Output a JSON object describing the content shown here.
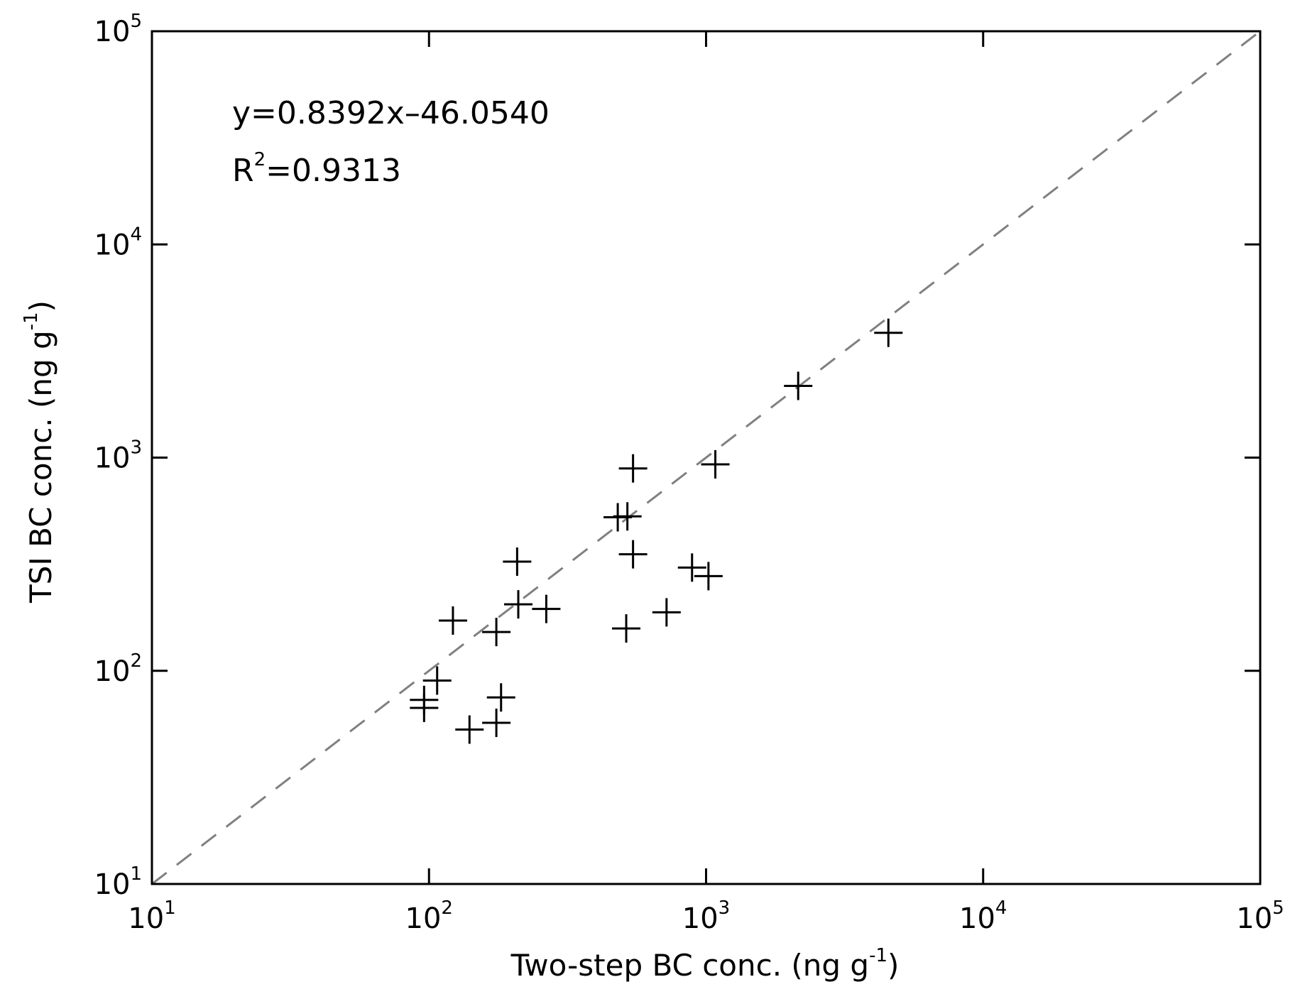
{
  "chart_data": {
    "type": "scatter",
    "xlabel": "Two-step BC conc. (ng g",
    "xlabel_exp": "-1",
    "xlabel_close": ")",
    "ylabel": "TSI BC conc. (ng g",
    "ylabel_exp": "-1",
    "ylabel_close": ")",
    "xscale": "log",
    "yscale": "log",
    "xlim": [
      10,
      100000
    ],
    "ylim": [
      10,
      100000
    ],
    "x_ticks": [
      {
        "base": "10",
        "exp": "1",
        "value": 10
      },
      {
        "base": "10",
        "exp": "2",
        "value": 100
      },
      {
        "base": "10",
        "exp": "3",
        "value": 1000
      },
      {
        "base": "10",
        "exp": "4",
        "value": 10000
      },
      {
        "base": "10",
        "exp": "5",
        "value": 100000
      }
    ],
    "y_ticks": [
      {
        "base": "10",
        "exp": "1",
        "value": 10
      },
      {
        "base": "10",
        "exp": "2",
        "value": 100
      },
      {
        "base": "10",
        "exp": "3",
        "value": 1000
      },
      {
        "base": "10",
        "exp": "4",
        "value": 10000
      },
      {
        "base": "10",
        "exp": "5",
        "value": 100000
      }
    ],
    "grid": false,
    "reference_line": {
      "style": "dashed",
      "color": "#808080",
      "relation": "y = x"
    },
    "annotations": {
      "equation": "y=0.8392x–46.0540",
      "r2_base": "R",
      "r2_exp": "2",
      "r2_value": "=0.9313"
    },
    "marker": "+",
    "marker_color": "#000000",
    "series": [
      {
        "points": [
          [
            96,
            73
          ],
          [
            96,
            67
          ],
          [
            107,
            90
          ],
          [
            122,
            172
          ],
          [
            140,
            53
          ],
          [
            175,
            152
          ],
          [
            175,
            57
          ],
          [
            182,
            75
          ],
          [
            208,
            325
          ],
          [
            210,
            205
          ],
          [
            265,
            195
          ],
          [
            480,
            525
          ],
          [
            520,
            530
          ],
          [
            545,
            890
          ],
          [
            545,
            352
          ],
          [
            515,
            158
          ],
          [
            720,
            188
          ],
          [
            890,
            305
          ],
          [
            1020,
            278
          ],
          [
            1080,
            930
          ],
          [
            2150,
            2170
          ],
          [
            4550,
            3850
          ]
        ]
      }
    ]
  }
}
